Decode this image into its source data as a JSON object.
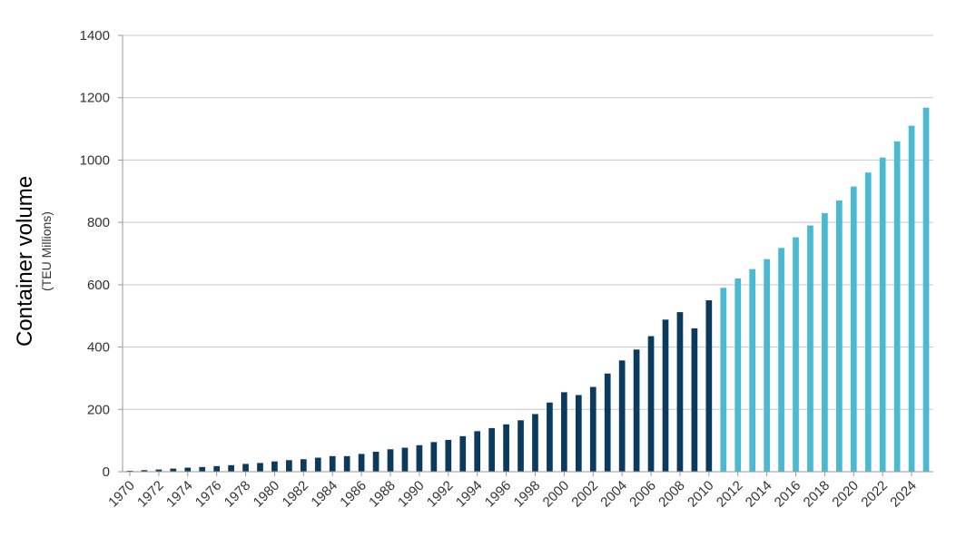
{
  "chart_data": {
    "type": "bar",
    "title": "",
    "xlabel": "",
    "ylabel": "Container volume",
    "ylabel_unit": "(TEU Millions)",
    "ylim": [
      0,
      1400
    ],
    "yticks": [
      0,
      200,
      400,
      600,
      800,
      1000,
      1200,
      1400
    ],
    "grid": true,
    "legend": "none",
    "colors": {
      "historical": "#0b3a5c",
      "forecast": "#4ab9d2"
    },
    "forecast_start_year": 2011,
    "categories": [
      1970,
      1971,
      1972,
      1973,
      1974,
      1975,
      1976,
      1977,
      1978,
      1979,
      1980,
      1981,
      1982,
      1983,
      1984,
      1985,
      1986,
      1987,
      1988,
      1989,
      1990,
      1991,
      1992,
      1993,
      1994,
      1995,
      1996,
      1997,
      1998,
      1999,
      2000,
      2001,
      2002,
      2003,
      2004,
      2005,
      2006,
      2007,
      2008,
      2009,
      2010,
      2011,
      2012,
      2013,
      2014,
      2015,
      2016,
      2017,
      2018,
      2019,
      2020,
      2021,
      2022,
      2023,
      2024,
      2025
    ],
    "x_tick_labels": [
      "1970",
      "1972",
      "1974",
      "1976",
      "1978",
      "1980",
      "1982",
      "1984",
      "1986",
      "1988",
      "1990",
      "1992",
      "1994",
      "1996",
      "1998",
      "2000",
      "2002",
      "2004",
      "2006",
      "2008",
      "2010",
      "2012",
      "2014",
      "2016",
      "2018",
      "2020",
      "2022",
      "2024"
    ],
    "values": [
      3,
      5,
      7,
      10,
      13,
      15,
      18,
      21,
      25,
      28,
      33,
      37,
      40,
      45,
      50,
      50,
      57,
      64,
      72,
      77,
      85,
      95,
      102,
      114,
      130,
      140,
      152,
      165,
      185,
      222,
      255,
      246,
      272,
      315,
      357,
      392,
      435,
      488,
      512,
      460,
      550,
      590,
      620,
      650,
      682,
      718,
      752,
      790,
      830,
      870,
      915,
      960,
      1008,
      1060,
      1110,
      1168
    ]
  }
}
